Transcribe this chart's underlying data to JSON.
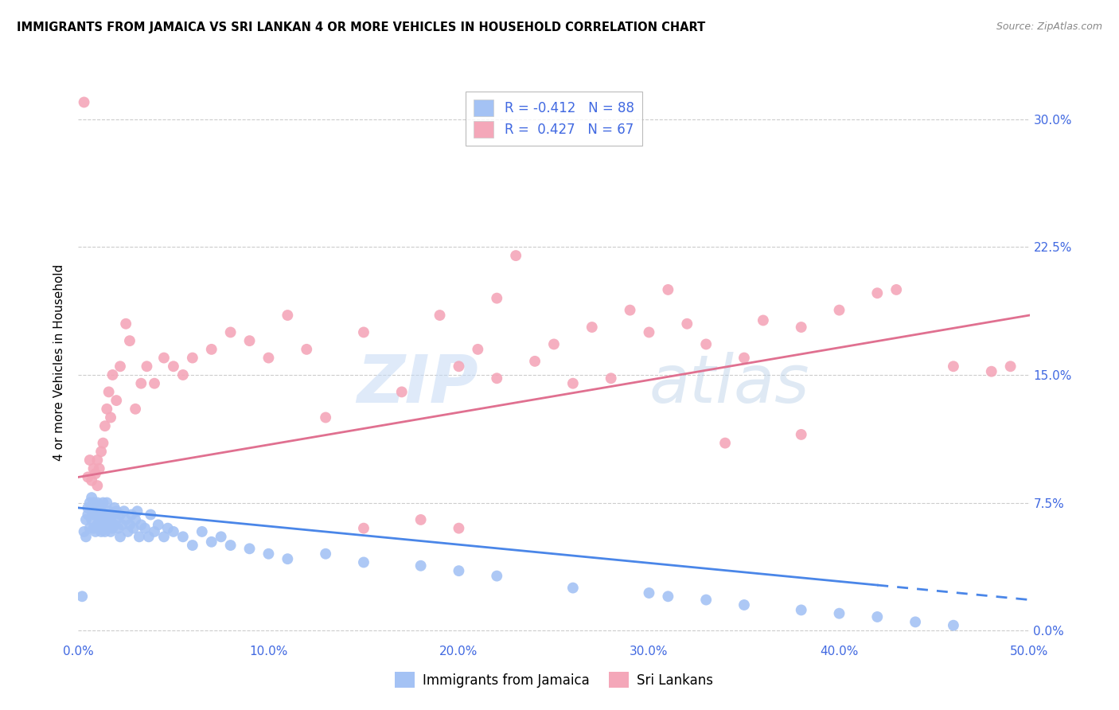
{
  "title": "IMMIGRANTS FROM JAMAICA VS SRI LANKAN 4 OR MORE VEHICLES IN HOUSEHOLD CORRELATION CHART",
  "source": "Source: ZipAtlas.com",
  "xlabel_ticks": [
    "0.0%",
    "10.0%",
    "20.0%",
    "30.0%",
    "40.0%",
    "50.0%"
  ],
  "xlabel_vals": [
    0.0,
    0.1,
    0.2,
    0.3,
    0.4,
    0.5
  ],
  "ylabel": "4 or more Vehicles in Household",
  "ylabel_ticks": [
    "0.0%",
    "7.5%",
    "15.0%",
    "22.5%",
    "30.0%"
  ],
  "ylabel_vals": [
    0.0,
    0.075,
    0.15,
    0.225,
    0.3
  ],
  "xlim": [
    0.0,
    0.5
  ],
  "ylim": [
    -0.005,
    0.32
  ],
  "legend_label1": "Immigrants from Jamaica",
  "legend_label2": "Sri Lankans",
  "R1": "-0.412",
  "N1": "88",
  "R2": "0.427",
  "N2": "67",
  "blue_color": "#a4c2f4",
  "pink_color": "#f4a7b9",
  "blue_line_color": "#4a86e8",
  "pink_line_color": "#e07090",
  "blue_line_solid_end": 0.42,
  "blue_line_dash_end": 0.5,
  "blue_line_y0": 0.072,
  "blue_line_y1": 0.018,
  "pink_line_y0": 0.09,
  "pink_line_y1": 0.185,
  "blue_x": [
    0.002,
    0.003,
    0.004,
    0.004,
    0.005,
    0.005,
    0.006,
    0.006,
    0.007,
    0.007,
    0.007,
    0.008,
    0.008,
    0.008,
    0.009,
    0.009,
    0.01,
    0.01,
    0.01,
    0.011,
    0.011,
    0.011,
    0.012,
    0.012,
    0.013,
    0.013,
    0.013,
    0.014,
    0.014,
    0.015,
    0.015,
    0.015,
    0.016,
    0.016,
    0.017,
    0.017,
    0.018,
    0.018,
    0.019,
    0.019,
    0.02,
    0.02,
    0.021,
    0.022,
    0.022,
    0.023,
    0.024,
    0.025,
    0.026,
    0.027,
    0.028,
    0.029,
    0.03,
    0.031,
    0.032,
    0.033,
    0.035,
    0.037,
    0.038,
    0.04,
    0.042,
    0.045,
    0.047,
    0.05,
    0.055,
    0.06,
    0.065,
    0.07,
    0.075,
    0.08,
    0.09,
    0.1,
    0.11,
    0.13,
    0.15,
    0.18,
    0.2,
    0.22,
    0.26,
    0.3,
    0.31,
    0.33,
    0.35,
    0.38,
    0.4,
    0.42,
    0.44,
    0.46
  ],
  "blue_y": [
    0.02,
    0.058,
    0.055,
    0.065,
    0.068,
    0.072,
    0.06,
    0.075,
    0.07,
    0.065,
    0.078,
    0.06,
    0.068,
    0.075,
    0.058,
    0.07,
    0.062,
    0.068,
    0.075,
    0.06,
    0.065,
    0.072,
    0.058,
    0.07,
    0.062,
    0.068,
    0.075,
    0.058,
    0.065,
    0.06,
    0.068,
    0.075,
    0.062,
    0.07,
    0.058,
    0.065,
    0.06,
    0.068,
    0.062,
    0.072,
    0.065,
    0.07,
    0.06,
    0.068,
    0.055,
    0.062,
    0.07,
    0.065,
    0.058,
    0.062,
    0.068,
    0.06,
    0.065,
    0.07,
    0.055,
    0.062,
    0.06,
    0.055,
    0.068,
    0.058,
    0.062,
    0.055,
    0.06,
    0.058,
    0.055,
    0.05,
    0.058,
    0.052,
    0.055,
    0.05,
    0.048,
    0.045,
    0.042,
    0.045,
    0.04,
    0.038,
    0.035,
    0.032,
    0.025,
    0.022,
    0.02,
    0.018,
    0.015,
    0.012,
    0.01,
    0.008,
    0.005,
    0.003
  ],
  "pink_x": [
    0.003,
    0.005,
    0.006,
    0.007,
    0.008,
    0.009,
    0.01,
    0.01,
    0.011,
    0.012,
    0.013,
    0.014,
    0.015,
    0.016,
    0.017,
    0.018,
    0.02,
    0.022,
    0.025,
    0.027,
    0.03,
    0.033,
    0.036,
    0.04,
    0.045,
    0.05,
    0.055,
    0.06,
    0.07,
    0.08,
    0.09,
    0.1,
    0.11,
    0.12,
    0.13,
    0.15,
    0.17,
    0.19,
    0.2,
    0.21,
    0.22,
    0.23,
    0.25,
    0.27,
    0.29,
    0.31,
    0.33,
    0.35,
    0.38,
    0.4,
    0.42,
    0.43,
    0.46,
    0.48,
    0.49,
    0.15,
    0.18,
    0.2,
    0.22,
    0.24,
    0.26,
    0.28,
    0.3,
    0.32,
    0.34,
    0.36,
    0.38
  ],
  "pink_y": [
    0.31,
    0.09,
    0.1,
    0.088,
    0.095,
    0.092,
    0.085,
    0.1,
    0.095,
    0.105,
    0.11,
    0.12,
    0.13,
    0.14,
    0.125,
    0.15,
    0.135,
    0.155,
    0.18,
    0.17,
    0.13,
    0.145,
    0.155,
    0.145,
    0.16,
    0.155,
    0.15,
    0.16,
    0.165,
    0.175,
    0.17,
    0.16,
    0.185,
    0.165,
    0.125,
    0.175,
    0.14,
    0.185,
    0.155,
    0.165,
    0.195,
    0.22,
    0.168,
    0.178,
    0.188,
    0.2,
    0.168,
    0.16,
    0.178,
    0.188,
    0.198,
    0.2,
    0.155,
    0.152,
    0.155,
    0.06,
    0.065,
    0.06,
    0.148,
    0.158,
    0.145,
    0.148,
    0.175,
    0.18,
    0.11,
    0.182,
    0.115
  ]
}
